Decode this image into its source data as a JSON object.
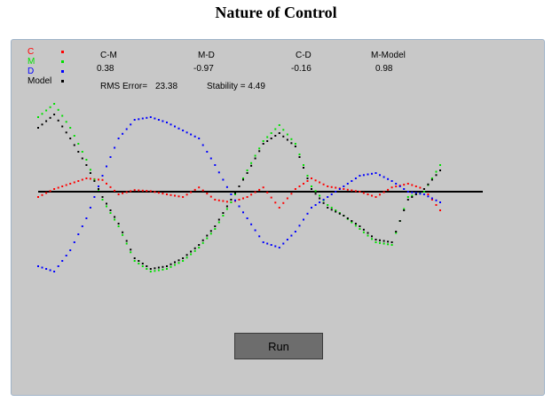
{
  "title": "Nature of Control",
  "legend": [
    {
      "label": "C",
      "color": "#ff0000"
    },
    {
      "label": "M",
      "color": "#00e000"
    },
    {
      "label": "D",
      "color": "#0000ff"
    },
    {
      "label": "Model",
      "color": "#000000"
    }
  ],
  "stats": {
    "headers": [
      "C-M",
      "M-D",
      "C-D",
      "M-Model"
    ],
    "values": [
      "0.38",
      "-0.97",
      "-0.16",
      "0.98"
    ],
    "rms_label": "RMS Error=",
    "rms_value": "23.38",
    "stability_label": "Stability = 4.49"
  },
  "run_button": "Run",
  "chart_data": {
    "type": "scatter",
    "x": [
      0,
      4,
      8,
      12,
      16,
      20,
      24,
      28,
      32,
      36,
      40,
      44,
      48,
      52,
      56,
      60,
      64,
      68,
      72,
      76,
      80,
      84,
      88,
      92,
      96,
      100
    ],
    "xlim": [
      0,
      100
    ],
    "ylim": [
      -200,
      200
    ],
    "zero_line": true,
    "grid": false,
    "series": [
      {
        "name": "C",
        "color": "#ff0000",
        "values": [
          -10,
          5,
          15,
          25,
          22,
          -5,
          3,
          1,
          -5,
          -10,
          8,
          -15,
          -20,
          -10,
          8,
          -30,
          5,
          25,
          10,
          5,
          0,
          -10,
          8,
          15,
          5,
          -35
        ]
      },
      {
        "name": "M",
        "color": "#00e000",
        "values": [
          140,
          165,
          120,
          60,
          -15,
          -65,
          -130,
          -150,
          -145,
          -130,
          -105,
          -70,
          -20,
          40,
          95,
          125,
          90,
          10,
          -25,
          -45,
          -70,
          -95,
          -100,
          -10,
          0,
          50
        ]
      },
      {
        "name": "D",
        "color": "#0000ff",
        "values": [
          -140,
          -150,
          -110,
          -50,
          30,
          100,
          135,
          140,
          130,
          115,
          100,
          50,
          -5,
          -50,
          -95,
          -105,
          -75,
          -30,
          -10,
          10,
          30,
          35,
          20,
          0,
          -5,
          -20
        ]
      },
      {
        "name": "Model",
        "color": "#000000",
        "values": [
          120,
          145,
          100,
          50,
          -10,
          -60,
          -125,
          -145,
          -140,
          -125,
          -100,
          -65,
          -15,
          35,
          90,
          110,
          85,
          5,
          -30,
          -45,
          -65,
          -90,
          -95,
          -15,
          5,
          40
        ]
      }
    ]
  }
}
